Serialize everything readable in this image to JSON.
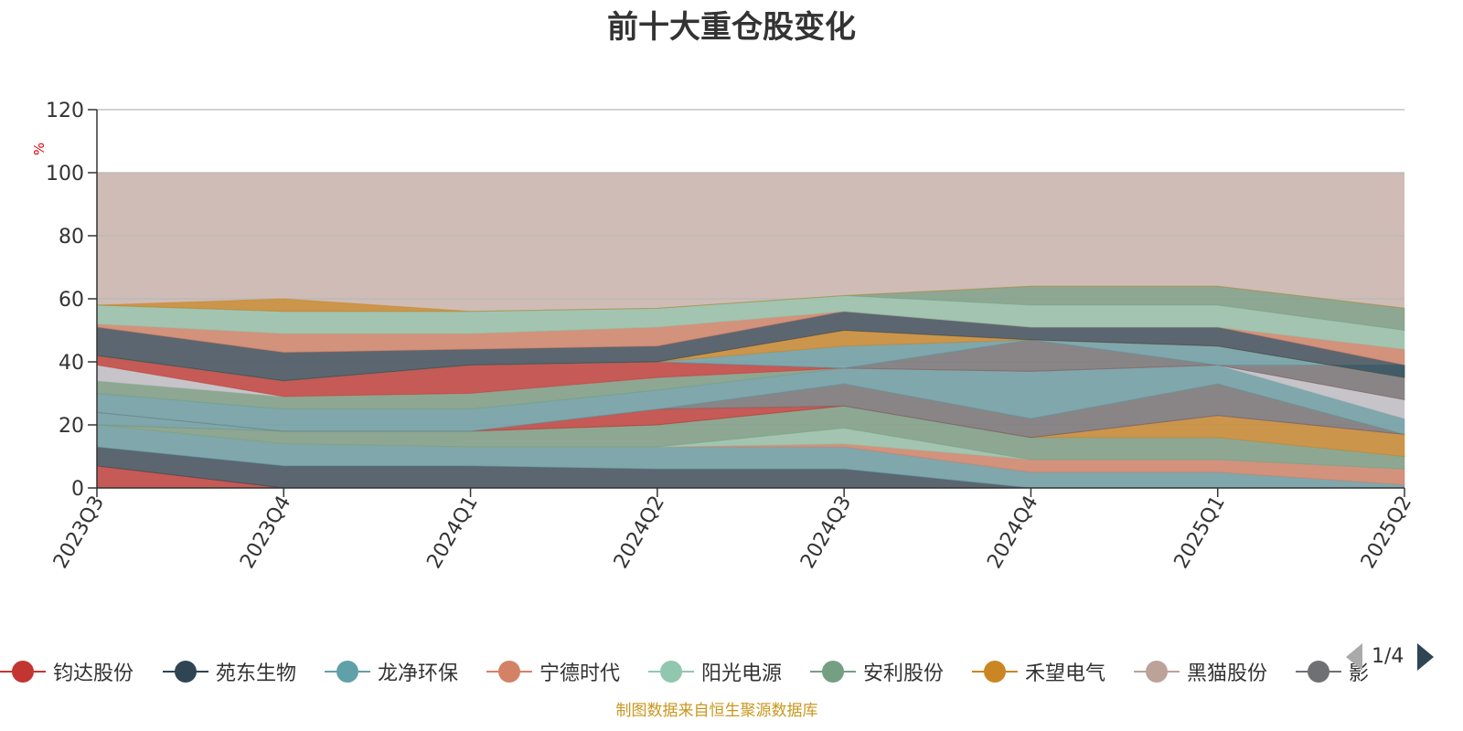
{
  "title": "前十大重仓股变化",
  "source_note": "制图数据来自恒生聚源数据库",
  "pager": {
    "text": "1/4",
    "prev_icon": "triangle-left-icon",
    "next_icon": "triangle-right-icon"
  },
  "legend_items": [
    {
      "label": "钧达股份",
      "color": "#c23531"
    },
    {
      "label": "苑东生物",
      "color": "#2f4554"
    },
    {
      "label": "龙净环保",
      "color": "#61a0a8"
    },
    {
      "label": "宁德时代",
      "color": "#d48265"
    },
    {
      "label": "阳光电源",
      "color": "#91c7ae"
    },
    {
      "label": "安利股份",
      "color": "#749f83"
    },
    {
      "label": "禾望电气",
      "color": "#ca8622"
    },
    {
      "label": "黑猫股份",
      "color": "#bda29a"
    },
    {
      "label": "影",
      "color": "#6e7074"
    }
  ],
  "chart_data": {
    "type": "area",
    "title": "前十大重仓股变化",
    "ylabel": "%",
    "ylim": [
      0,
      120
    ],
    "yticks": [
      0,
      20,
      40,
      60,
      80,
      100,
      120
    ],
    "grid": true,
    "categories": [
      "2023Q3",
      "2023Q4",
      "2024Q1",
      "2024Q2",
      "2024Q3",
      "2024Q4",
      "2025Q1",
      "2025Q2"
    ],
    "background_band": {
      "from": 0,
      "to": 100,
      "color": "#bda29a"
    },
    "stacked_areas": [
      {
        "color": "#c23531",
        "values": [
          [
            0,
            7
          ],
          [
            0,
            0
          ],
          [
            0,
            0
          ],
          [
            0,
            0
          ],
          [
            0,
            0
          ],
          [
            0,
            0
          ],
          [
            0,
            0
          ],
          [
            0,
            0
          ]
        ]
      },
      {
        "color": "#2f4554",
        "values": [
          [
            7,
            13
          ],
          [
            0,
            7
          ],
          [
            0,
            7
          ],
          [
            0,
            6
          ],
          [
            0,
            6
          ],
          [
            0,
            0
          ],
          [
            0,
            0
          ],
          [
            0,
            0
          ]
        ]
      },
      {
        "color": "#61a0a8",
        "values": [
          [
            13,
            20
          ],
          [
            7,
            14
          ],
          [
            7,
            13
          ],
          [
            6,
            13
          ],
          [
            6,
            13
          ],
          [
            0,
            5
          ],
          [
            0,
            5
          ],
          [
            0,
            1
          ]
        ]
      },
      {
        "color": "#d48265",
        "values": [
          [
            20,
            20
          ],
          [
            14,
            14
          ],
          [
            13,
            13
          ],
          [
            13,
            13
          ],
          [
            13,
            14
          ],
          [
            5,
            9
          ],
          [
            5,
            9
          ],
          [
            1,
            6
          ]
        ]
      },
      {
        "color": "#91c7ae",
        "values": [
          [
            20,
            20
          ],
          [
            14,
            14
          ],
          [
            13,
            13
          ],
          [
            13,
            13
          ],
          [
            14,
            19
          ],
          [
            9,
            9
          ],
          [
            9,
            9
          ],
          [
            6,
            6
          ]
        ]
      },
      {
        "color": "#749f83",
        "values": [
          [
            20,
            20
          ],
          [
            14,
            18
          ],
          [
            13,
            18
          ],
          [
            13,
            20
          ],
          [
            19,
            26
          ],
          [
            9,
            16
          ],
          [
            9,
            16
          ],
          [
            6,
            10
          ]
        ]
      },
      {
        "color": "#ca8622",
        "values": [
          [
            20,
            20
          ],
          [
            18,
            18
          ],
          [
            18,
            18
          ],
          [
            20,
            20
          ],
          [
            26,
            26
          ],
          [
            16,
            16
          ],
          [
            16,
            23
          ],
          [
            10,
            17
          ]
        ]
      },
      {
        "color": "#61a0a8",
        "values": [
          [
            20,
            24
          ],
          [
            18,
            18
          ],
          [
            18,
            18
          ],
          [
            20,
            20
          ],
          [
            26,
            26
          ],
          [
            16,
            16
          ],
          [
            23,
            23
          ],
          [
            17,
            17
          ]
        ]
      },
      {
        "color": "#c23531",
        "values": [
          [
            24,
            24
          ],
          [
            18,
            18
          ],
          [
            18,
            18
          ],
          [
            20,
            25
          ],
          [
            26,
            26
          ],
          [
            16,
            16
          ],
          [
            23,
            23
          ],
          [
            17,
            17
          ]
        ]
      },
      {
        "color": "#6e7074",
        "values": [
          [
            24,
            24
          ],
          [
            18,
            18
          ],
          [
            18,
            18
          ],
          [
            25,
            25
          ],
          [
            26,
            33
          ],
          [
            16,
            22
          ],
          [
            23,
            33
          ],
          [
            17,
            17
          ]
        ]
      },
      {
        "color": "#61a0a8",
        "values": [
          [
            24,
            30
          ],
          [
            18,
            25
          ],
          [
            18,
            25
          ],
          [
            25,
            31
          ],
          [
            33,
            38
          ],
          [
            22,
            37
          ],
          [
            33,
            39
          ],
          [
            17,
            22
          ]
        ]
      },
      {
        "color": "#749f83",
        "values": [
          [
            30,
            34
          ],
          [
            25,
            29
          ],
          [
            25,
            30
          ],
          [
            31,
            35
          ],
          [
            38,
            38
          ],
          [
            37,
            37
          ],
          [
            39,
            39
          ],
          [
            22,
            22
          ]
        ]
      },
      {
        "color": "#c4c7d0",
        "values": [
          [
            34,
            39
          ],
          [
            29,
            29
          ],
          [
            30,
            30
          ],
          [
            35,
            35
          ],
          [
            38,
            38
          ],
          [
            37,
            37
          ],
          [
            39,
            39
          ],
          [
            22,
            28
          ]
        ]
      },
      {
        "color": "#c23531",
        "values": [
          [
            39,
            42
          ],
          [
            29,
            34
          ],
          [
            30,
            39
          ],
          [
            35,
            40
          ],
          [
            38,
            38
          ],
          [
            37,
            37
          ],
          [
            39,
            39
          ],
          [
            28,
            28
          ]
        ]
      },
      {
        "color": "#6e7074",
        "values": [
          [
            42,
            42
          ],
          [
            34,
            34
          ],
          [
            39,
            39
          ],
          [
            40,
            40
          ],
          [
            38,
            38
          ],
          [
            37,
            47
          ],
          [
            39,
            39
          ],
          [
            28,
            39
          ]
        ]
      },
      {
        "color": "#61a0a8",
        "values": [
          [
            42,
            42
          ],
          [
            34,
            34
          ],
          [
            39,
            39
          ],
          [
            40,
            40
          ],
          [
            38,
            45
          ],
          [
            47,
            47
          ],
          [
            39,
            45
          ],
          [
            39,
            35
          ]
        ]
      },
      {
        "color": "#ca8622",
        "values": [
          [
            42,
            42
          ],
          [
            34,
            34
          ],
          [
            39,
            39
          ],
          [
            40,
            40
          ],
          [
            45,
            50
          ],
          [
            47,
            47
          ],
          [
            45,
            45
          ],
          [
            35,
            35
          ]
        ]
      },
      {
        "color": "#2f4554",
        "values": [
          [
            42,
            51
          ],
          [
            34,
            43
          ],
          [
            39,
            44
          ],
          [
            40,
            45
          ],
          [
            50,
            56
          ],
          [
            47,
            51
          ],
          [
            45,
            51
          ],
          [
            35,
            39
          ]
        ]
      },
      {
        "color": "#d48265",
        "values": [
          [
            51,
            52
          ],
          [
            43,
            49
          ],
          [
            44,
            49
          ],
          [
            45,
            51
          ],
          [
            56,
            56
          ],
          [
            51,
            51
          ],
          [
            51,
            51
          ],
          [
            39,
            44
          ]
        ]
      },
      {
        "color": "#91c7ae",
        "values": [
          [
            52,
            58
          ],
          [
            49,
            56
          ],
          [
            49,
            56
          ],
          [
            51,
            57
          ],
          [
            56,
            61
          ],
          [
            51,
            58
          ],
          [
            51,
            58
          ],
          [
            44,
            50
          ]
        ]
      },
      {
        "color": "#749f83",
        "values": [
          [
            58,
            58
          ],
          [
            56,
            56
          ],
          [
            56,
            56
          ],
          [
            57,
            57
          ],
          [
            61,
            61
          ],
          [
            58,
            64
          ],
          [
            58,
            64
          ],
          [
            50,
            57
          ]
        ]
      },
      {
        "color": "#ca8622",
        "values": [
          [
            58,
            58
          ],
          [
            56,
            60
          ],
          [
            56,
            56
          ],
          [
            57,
            57
          ],
          [
            61,
            61
          ],
          [
            64,
            64
          ],
          [
            64,
            64
          ],
          [
            57,
            57
          ]
        ]
      }
    ]
  }
}
